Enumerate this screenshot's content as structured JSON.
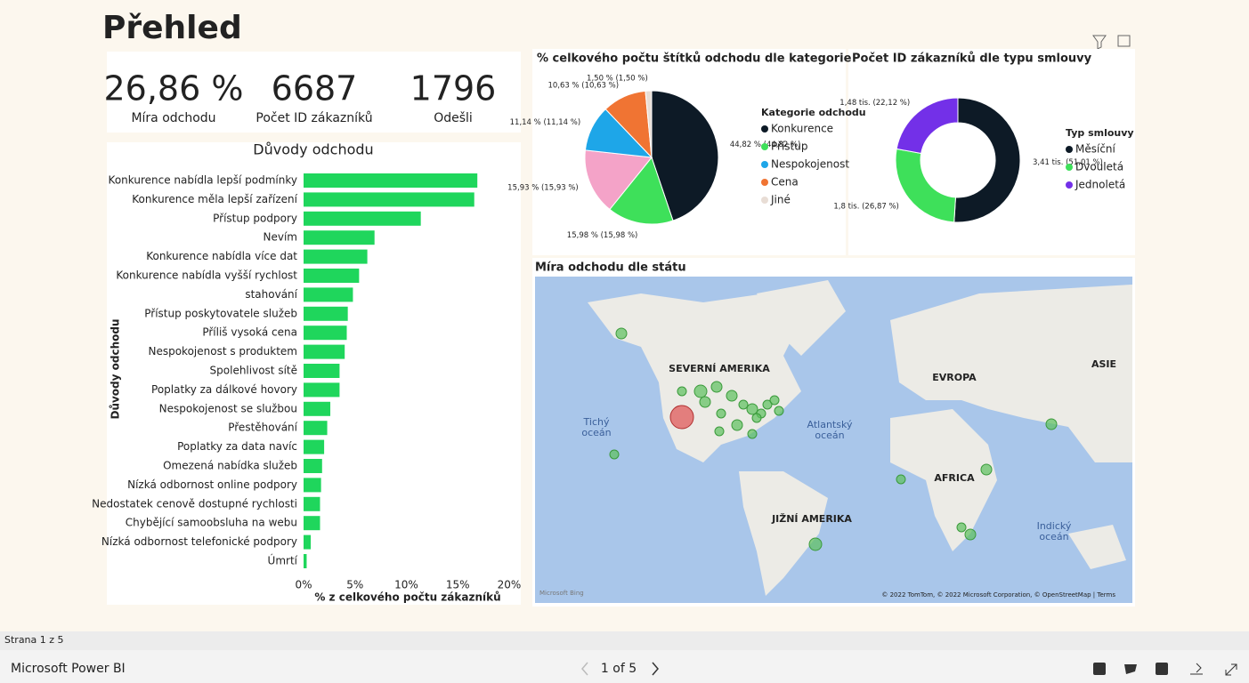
{
  "title": "Přehled",
  "kpis": [
    {
      "value": "26,86 %",
      "label": "Míra odchodu"
    },
    {
      "value": "6687",
      "label": "Počet ID zákazníků"
    },
    {
      "value": "1796",
      "label": "Odešli"
    }
  ],
  "chart_data": [
    {
      "type": "bar",
      "orientation": "horizontal",
      "title": "Důvody odchodu",
      "xlabel": "% z celkového počtu zákazníků",
      "ylabel": "Důvody odchodu",
      "categories": [
        "Konkurence nabídla lepší podmínky",
        "Konkurence měla lepší zařízení",
        "Přístup podpory",
        "Nevím",
        "Konkurence nabídla více dat",
        "Konkurence nabídla vyšší rychlost",
        "stahování",
        "Přístup poskytovatele služeb",
        "Příliš vysoká cena",
        "Nespokojenost s produktem",
        "Spolehlivost sítě",
        "Poplatky za dálkové hovory",
        "Nespokojenost se službou",
        "Přestěhování",
        "Poplatky za data navíc",
        "Omezená nabídka služeb",
        "Nízká odbornost online podpory",
        "Nedostatek cenově dostupné rychlosti",
        "Chybějící samoobsluha na webu",
        "Nízká odbornost telefonické podpory",
        "Úmrtí"
      ],
      "values": [
        16.9,
        16.6,
        11.4,
        6.9,
        6.2,
        5.4,
        4.8,
        4.3,
        4.2,
        4.0,
        3.5,
        3.5,
        2.6,
        2.3,
        2.0,
        1.8,
        1.7,
        1.6,
        1.6,
        0.7,
        0.3
      ],
      "color": "#1fd65c",
      "xlim": [
        0,
        20
      ],
      "xticks": [
        {
          "value": 0,
          "label": "0%"
        },
        {
          "value": 5,
          "label": "5%"
        },
        {
          "value": 10,
          "label": "10%"
        },
        {
          "value": 15,
          "label": "15%"
        },
        {
          "value": 20,
          "label": "20%"
        }
      ]
    },
    {
      "type": "pie",
      "title": "% celkového počtu štítků odchodu dle kategorie",
      "legend_title": "Kategorie odchodu",
      "categories": [
        "Konkurence",
        "Přístup",
        null,
        "Nespokojenost",
        "Cena",
        "Jiné"
      ],
      "values": [
        44.82,
        15.98,
        15.93,
        11.14,
        10.63,
        1.5
      ],
      "value_labels": [
        "44,82 % (44,82 %)",
        "15,98 % (15,98 %)",
        "15,93 % (15,93 %)",
        "11,14 % (11,14 %)",
        "10,63 % (10,63 %)",
        "1,50 % (1,50 %)"
      ],
      "colors": [
        "#0d1a26",
        "#3ee05a",
        "#f4a3c8",
        "#1ea6e8",
        "#f07433",
        "#e8ddd5"
      ]
    },
    {
      "type": "donut",
      "title": "Počet ID zákazníků dle typu smlouvy",
      "legend_title": "Typ smlouvy",
      "categories": [
        "Měsíční",
        "Dvouletá",
        "Jednoletá"
      ],
      "values": [
        3410,
        1800,
        1480
      ],
      "value_labels": [
        "3,41 tis. (51,01 %)",
        "1,8 tis. (26,87 %)",
        "1,48 tis. (22,12 %)"
      ],
      "colors": [
        "#0d1a26",
        "#3ee05a",
        "#7330e8"
      ]
    }
  ],
  "map": {
    "title": "Míra odchodu dle státu",
    "labels": [
      "SEVERNÍ AMERIKA",
      "EVROPA",
      "ASIE",
      "AFRICA",
      "JIŽNÍ AMERIKA"
    ],
    "oceans": [
      [
        "Tichý",
        "oceán"
      ],
      [
        "Atlantský",
        "oceán"
      ],
      [
        "Indický",
        "oceán"
      ]
    ],
    "attribution": "© 2022 TomTom, © 2022 Microsoft Corporation, © OpenStreetMap | Terms",
    "logo": "Microsoft Bing"
  },
  "footer": {
    "page": "Strana 1 z 5",
    "brand": "Microsoft Power BI",
    "pager": "1 of 5"
  }
}
